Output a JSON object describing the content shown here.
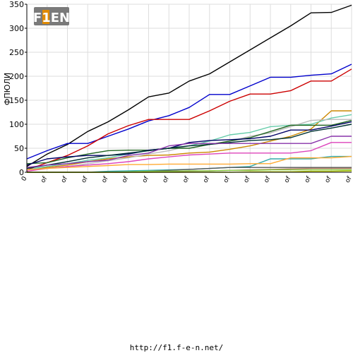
{
  "chart_data": {
    "type": "line",
    "ylabel": "ФПЮЛИ",
    "ylim": [
      0,
      350
    ],
    "yticks": [
      0,
      50,
      100,
      150,
      200,
      250,
      300,
      350
    ],
    "categories": [
      "0",
      "of",
      "of",
      "of",
      "of",
      "of",
      "of",
      "of",
      "of",
      "of",
      "of",
      "of",
      "of",
      "of",
      "of",
      "of",
      "of"
    ],
    "grid": true,
    "logo_text": "F1EN",
    "series": [
      {
        "color": "#000000",
        "values": [
          12,
          38,
          58,
          85,
          105,
          130,
          157,
          165,
          190,
          205,
          230,
          255,
          280,
          305,
          332,
          333,
          348
        ]
      },
      {
        "color": "#0000cc",
        "values": [
          28,
          45,
          60,
          60,
          75,
          90,
          107,
          118,
          135,
          162,
          162,
          180,
          198,
          198,
          202,
          205,
          225
        ]
      },
      {
        "color": "#cc0000",
        "values": [
          5,
          20,
          35,
          55,
          80,
          97,
          110,
          110,
          110,
          128,
          148,
          163,
          163,
          170,
          190,
          190,
          215
        ]
      },
      {
        "color": "#cc8800",
        "values": [
          5,
          10,
          15,
          22,
          28,
          32,
          35,
          36,
          40,
          42,
          48,
          55,
          65,
          75,
          90,
          128,
          128
        ]
      },
      {
        "color": "#66ccaa",
        "values": [
          5,
          12,
          18,
          25,
          30,
          38,
          45,
          50,
          55,
          65,
          78,
          83,
          95,
          98,
          100,
          113,
          120
        ]
      },
      {
        "color": "#bbbbbb",
        "values": [
          5,
          8,
          12,
          18,
          24,
          30,
          38,
          45,
          55,
          58,
          65,
          75,
          82,
          95,
          108,
          110,
          110
        ]
      },
      {
        "color": "#226622",
        "values": [
          18,
          20,
          30,
          38,
          45,
          46,
          46,
          50,
          50,
          58,
          65,
          72,
          85,
          98,
          98,
          98,
          108
        ]
      },
      {
        "color": "#000066",
        "values": [
          15,
          28,
          32,
          35,
          35,
          38,
          46,
          50,
          62,
          66,
          68,
          70,
          75,
          88,
          88,
          96,
          105
        ]
      },
      {
        "color": "#003333",
        "values": [
          8,
          15,
          22,
          30,
          35,
          40,
          45,
          50,
          55,
          58,
          62,
          66,
          68,
          72,
          85,
          92,
          100
        ]
      },
      {
        "color": "#8833aa",
        "values": [
          10,
          15,
          18,
          22,
          25,
          35,
          40,
          55,
          60,
          60,
          60,
          60,
          60,
          60,
          60,
          75,
          75
        ]
      },
      {
        "color": "#dd44bb",
        "values": [
          2,
          8,
          12,
          15,
          18,
          22,
          28,
          32,
          36,
          38,
          40,
          40,
          40,
          40,
          45,
          62,
          62
        ]
      },
      {
        "color": "#33aaaa",
        "values": [
          0,
          0,
          0,
          0,
          2,
          3,
          4,
          5,
          6,
          8,
          10,
          12,
          28,
          28,
          28,
          33,
          33
        ]
      },
      {
        "color": "#ffaa33",
        "values": [
          5,
          8,
          10,
          12,
          14,
          16,
          16,
          17,
          17,
          17,
          17,
          18,
          18,
          30,
          30,
          30,
          33
        ]
      },
      {
        "color": "#555555",
        "values": [
          0,
          0,
          0,
          0,
          0,
          0,
          2,
          4,
          6,
          8,
          10,
          10,
          10,
          10,
          10,
          10,
          10
        ]
      },
      {
        "color": "#aa7755",
        "values": [
          0,
          0,
          0,
          0,
          0,
          0,
          0,
          1,
          2,
          3,
          4,
          5,
          6,
          7,
          8,
          8,
          8
        ]
      },
      {
        "color": "#88cc44",
        "values": [
          0,
          0,
          0,
          0,
          0,
          1,
          2,
          2,
          3,
          3,
          4,
          4,
          5,
          5,
          5,
          5,
          5
        ]
      },
      {
        "color": "#aabb00",
        "values": [
          0,
          0,
          0,
          0,
          0,
          0,
          0,
          0,
          0,
          0,
          0,
          1,
          1,
          1,
          2,
          2,
          3
        ]
      }
    ]
  },
  "footer_url": "http://f1.f-e-n.net/"
}
